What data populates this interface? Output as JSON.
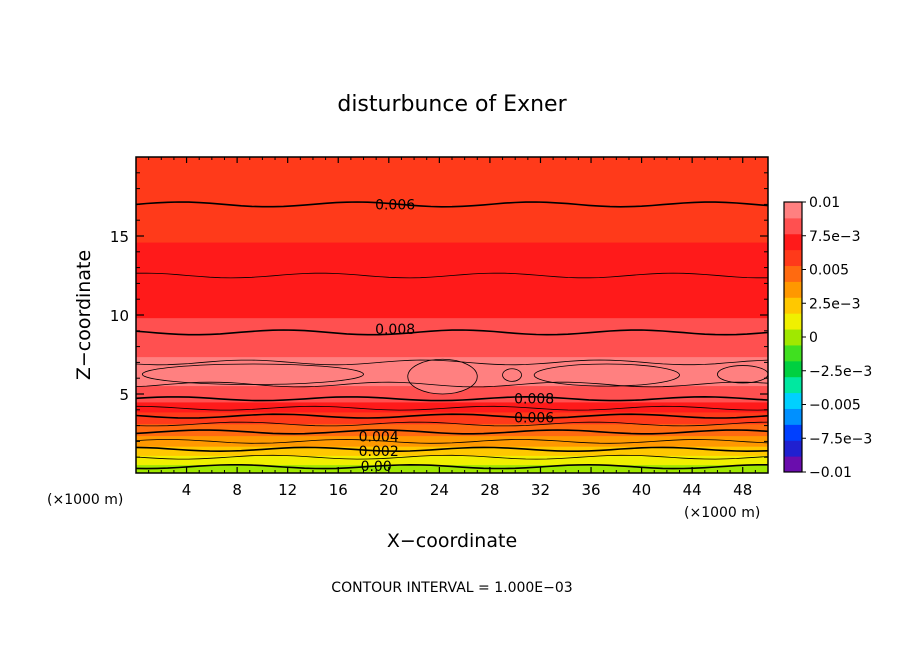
{
  "chart_data": {
    "type": "heatmap",
    "title": "disturbunce of Exner",
    "xlabel": "X−coordinate",
    "ylabel": "Z−coordinate",
    "x_unit_left": "(×1000 m)",
    "x_unit_right": "(×1000 m)",
    "footer": "CONTOUR INTERVAL = 1.000E−03",
    "xlim": [
      0,
      50
    ],
    "ylim": [
      0,
      20
    ],
    "x_ticks": [
      4,
      8,
      12,
      16,
      20,
      24,
      28,
      32,
      36,
      40,
      44,
      48
    ],
    "y_ticks": [
      5,
      10,
      15
    ],
    "contour_interval": 0.001,
    "colorbar": {
      "range": [
        -0.01,
        0.01
      ],
      "tick_labels": [
        "0.01",
        "7.5e−3",
        "0.005",
        "2.5e−3",
        "0",
        "−2.5e−3",
        "−0.005",
        "−7.5e−3",
        "−0.01"
      ],
      "tick_values": [
        0.01,
        0.0075,
        0.005,
        0.0025,
        0,
        -0.0025,
        -0.005,
        -0.0075,
        -0.01
      ],
      "colors": [
        "#6a0dad",
        "#2020d0",
        "#0040ff",
        "#0090ff",
        "#00d0ff",
        "#00e8a0",
        "#00d040",
        "#40e020",
        "#a0e800",
        "#f0f000",
        "#ffc800",
        "#ff9800",
        "#ff6a10",
        "#ff3a1a",
        "#ff1a1a",
        "#ff5050",
        "#ff8080"
      ]
    },
    "contour_labels": [
      {
        "text": "0.006",
        "x": 20.5,
        "y": 17.0
      },
      {
        "text": "0.008",
        "x": 20.5,
        "y": 9.1
      },
      {
        "text": "0.008",
        "x": 31.5,
        "y": 4.7
      },
      {
        "text": "0.006",
        "x": 31.5,
        "y": 3.5
      },
      {
        "text": "0.004",
        "x": 19.2,
        "y": 2.3
      },
      {
        "text": "0.002",
        "x": 19.2,
        "y": 1.4
      },
      {
        "text": "0.00",
        "x": 19.0,
        "y": 0.45
      }
    ],
    "profile": [
      {
        "z": 20.0,
        "value": 0.0056
      },
      {
        "z": 18.5,
        "value": 0.0057
      },
      {
        "z": 17.0,
        "value": 0.006
      },
      {
        "z": 15.0,
        "value": 0.0064
      },
      {
        "z": 12.5,
        "value": 0.007
      },
      {
        "z": 10.0,
        "value": 0.0076
      },
      {
        "z": 8.8,
        "value": 0.008
      },
      {
        "z": 7.5,
        "value": 0.0087
      },
      {
        "z": 6.5,
        "value": 0.0092
      },
      {
        "z": 5.5,
        "value": 0.0088
      },
      {
        "z": 4.7,
        "value": 0.008
      },
      {
        "z": 4.0,
        "value": 0.0068
      },
      {
        "z": 3.5,
        "value": 0.006
      },
      {
        "z": 3.0,
        "value": 0.0052
      },
      {
        "z": 2.5,
        "value": 0.0044
      },
      {
        "z": 2.0,
        "value": 0.0036
      },
      {
        "z": 1.5,
        "value": 0.0026
      },
      {
        "z": 1.0,
        "value": 0.0016
      },
      {
        "z": 0.5,
        "value": 0.0006
      },
      {
        "z": 0.0,
        "value": 0.0
      }
    ],
    "contour_lines": [
      {
        "value": 0.006,
        "z": 17.0,
        "labeled": true
      },
      {
        "value": 0.007,
        "z": 12.5,
        "labeled": false
      },
      {
        "value": 0.008,
        "z": 8.9,
        "labeled": true
      },
      {
        "value": 0.009,
        "z": 7.0,
        "labeled": false
      },
      {
        "value": 0.009,
        "z": 5.6,
        "labeled": false
      },
      {
        "value": 0.008,
        "z": 4.7,
        "labeled": true
      },
      {
        "value": 0.007,
        "z": 4.1,
        "labeled": false
      },
      {
        "value": 0.006,
        "z": 3.6,
        "labeled": true
      },
      {
        "value": 0.005,
        "z": 3.1,
        "labeled": false
      },
      {
        "value": 0.004,
        "z": 2.6,
        "labeled": true
      },
      {
        "value": 0.003,
        "z": 2.0,
        "labeled": false
      },
      {
        "value": 0.002,
        "z": 1.5,
        "labeled": true
      },
      {
        "value": 0.001,
        "z": 1.0,
        "labeled": false
      },
      {
        "value": 0.0,
        "z": 0.4,
        "labeled": true
      }
    ],
    "max_cells": [
      {
        "x_start": 0.5,
        "x_end": 18,
        "z_low": 5.6,
        "z_high": 6.9
      },
      {
        "x_start": 21.5,
        "x_end": 27,
        "z_low": 5.0,
        "z_high": 7.2
      },
      {
        "x_start": 29,
        "x_end": 30.5,
        "z_low": 5.8,
        "z_high": 6.6
      },
      {
        "x_start": 31.5,
        "x_end": 43,
        "z_low": 5.5,
        "z_high": 6.9
      },
      {
        "x_start": 46,
        "x_end": 50,
        "z_low": 5.7,
        "z_high": 6.8
      }
    ]
  }
}
